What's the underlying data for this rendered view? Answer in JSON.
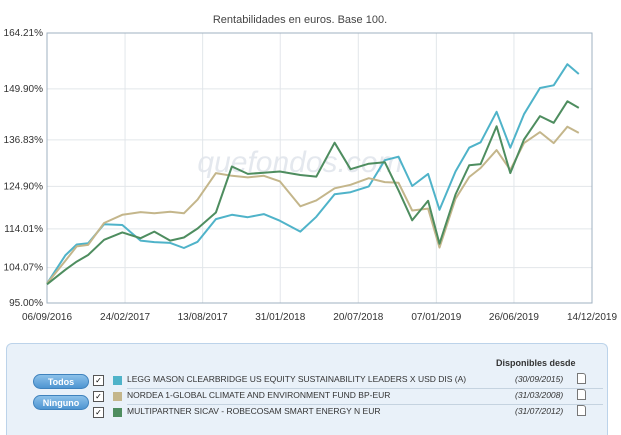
{
  "chart_data": {
    "type": "line",
    "title": "Rentabilidades en euros. Base 100.",
    "watermark": "quefondos.com",
    "xlabel": "",
    "ylabel": "",
    "ylim": [
      95.0,
      164.21
    ],
    "xlim": [
      0,
      1194
    ],
    "y_ticks": [
      95.0,
      104.07,
      114.01,
      124.9,
      136.83,
      149.9,
      164.21
    ],
    "y_tick_labels": [
      "95.00%",
      "104.07%",
      "114.01%",
      "124.90%",
      "136.83%",
      "149.90%",
      "164.21%"
    ],
    "x_ticks": [
      0,
      171,
      341,
      511,
      682,
      853,
      1023,
      1194
    ],
    "x_tick_labels": [
      "06/09/2016",
      "24/02/2017",
      "13/08/2017",
      "31/01/2018",
      "20/07/2018",
      "07/01/2019",
      "26/06/2019",
      "14/12/2019"
    ],
    "x_unit": "days since 06/09/2016",
    "grid": true,
    "series": [
      {
        "name": "LEGG MASON CLEARBRIDGE US EQUITY SUSTAINABILITY LEADERS X USD DIS (A)",
        "color": "#4fb3c9",
        "x": [
          0,
          40,
          65,
          90,
          125,
          165,
          205,
          235,
          270,
          300,
          330,
          370,
          405,
          440,
          475,
          510,
          555,
          590,
          630,
          665,
          705,
          740,
          770,
          800,
          835,
          860,
          895,
          925,
          950,
          985,
          1015,
          1045,
          1080,
          1110,
          1140,
          1165
        ],
        "values": [
          100.0,
          107.2,
          110.0,
          110.3,
          115.2,
          115.0,
          111.0,
          110.6,
          110.4,
          109.1,
          110.7,
          116.5,
          117.6,
          117.0,
          117.8,
          116.1,
          113.3,
          117.1,
          122.9,
          123.4,
          124.9,
          131.6,
          132.5,
          125.0,
          128.1,
          118.9,
          128.7,
          134.8,
          136.2,
          144.0,
          134.8,
          143.4,
          150.1,
          150.8,
          156.2,
          153.7
        ]
      },
      {
        "name": "NORDEA 1-GLOBAL CLIMATE AND ENVIRONMENT FUND BP-EUR",
        "color": "#c4b68b",
        "x": [
          0,
          40,
          65,
          90,
          125,
          165,
          205,
          235,
          270,
          300,
          330,
          370,
          405,
          440,
          475,
          510,
          555,
          590,
          630,
          665,
          705,
          740,
          770,
          800,
          835,
          860,
          895,
          925,
          950,
          985,
          1015,
          1045,
          1080,
          1110,
          1140,
          1165
        ],
        "values": [
          100.0,
          105.8,
          109.5,
          109.9,
          115.5,
          117.6,
          118.3,
          118.0,
          118.4,
          118.0,
          121.5,
          128.3,
          127.6,
          127.2,
          127.6,
          126.2,
          119.8,
          121.3,
          124.4,
          125.3,
          127.0,
          126.0,
          125.8,
          118.7,
          119.2,
          109.2,
          121.7,
          127.3,
          129.6,
          134.2,
          129.1,
          136.0,
          138.8,
          136.0,
          140.2,
          138.6
        ]
      },
      {
        "name": "MULTIPARTNER SICAV - ROBECOSAM SMART ENERGY N EUR",
        "color": "#4e8d5f",
        "x": [
          0,
          40,
          65,
          90,
          125,
          165,
          205,
          235,
          270,
          300,
          330,
          370,
          405,
          440,
          475,
          510,
          555,
          590,
          630,
          665,
          705,
          740,
          770,
          800,
          835,
          860,
          895,
          925,
          950,
          985,
          1015,
          1045,
          1080,
          1110,
          1140,
          1165
        ],
        "values": [
          99.8,
          103.5,
          105.6,
          107.3,
          111.2,
          113.1,
          111.6,
          113.3,
          111.0,
          111.8,
          114.1,
          118.2,
          130.0,
          128.1,
          128.4,
          128.7,
          127.8,
          127.4,
          136.1,
          129.3,
          130.7,
          131.1,
          123.9,
          116.2,
          121.2,
          110.2,
          122.8,
          130.3,
          130.6,
          140.3,
          128.3,
          136.9,
          142.9,
          141.2,
          146.7,
          145.0
        ]
      }
    ]
  },
  "legend": {
    "header": "Disponibles desde",
    "buttons": {
      "all": "Todos",
      "none": "Ninguno"
    },
    "items": [
      {
        "name": "LEGG MASON CLEARBRIDGE US EQUITY SUSTAINABILITY LEADERS X USD DIS (A)",
        "date": "(30/09/2015)",
        "color": "#4fb3c9",
        "checked": "✓"
      },
      {
        "name": "NORDEA 1-GLOBAL CLIMATE AND ENVIRONMENT FUND BP-EUR",
        "date": "(31/03/2008)",
        "color": "#c4b68b",
        "checked": "✓"
      },
      {
        "name": "MULTIPARTNER SICAV - ROBECOSAM SMART ENERGY N EUR",
        "date": "(31/07/2012)",
        "color": "#4e8d5f",
        "checked": "✓"
      }
    ]
  }
}
